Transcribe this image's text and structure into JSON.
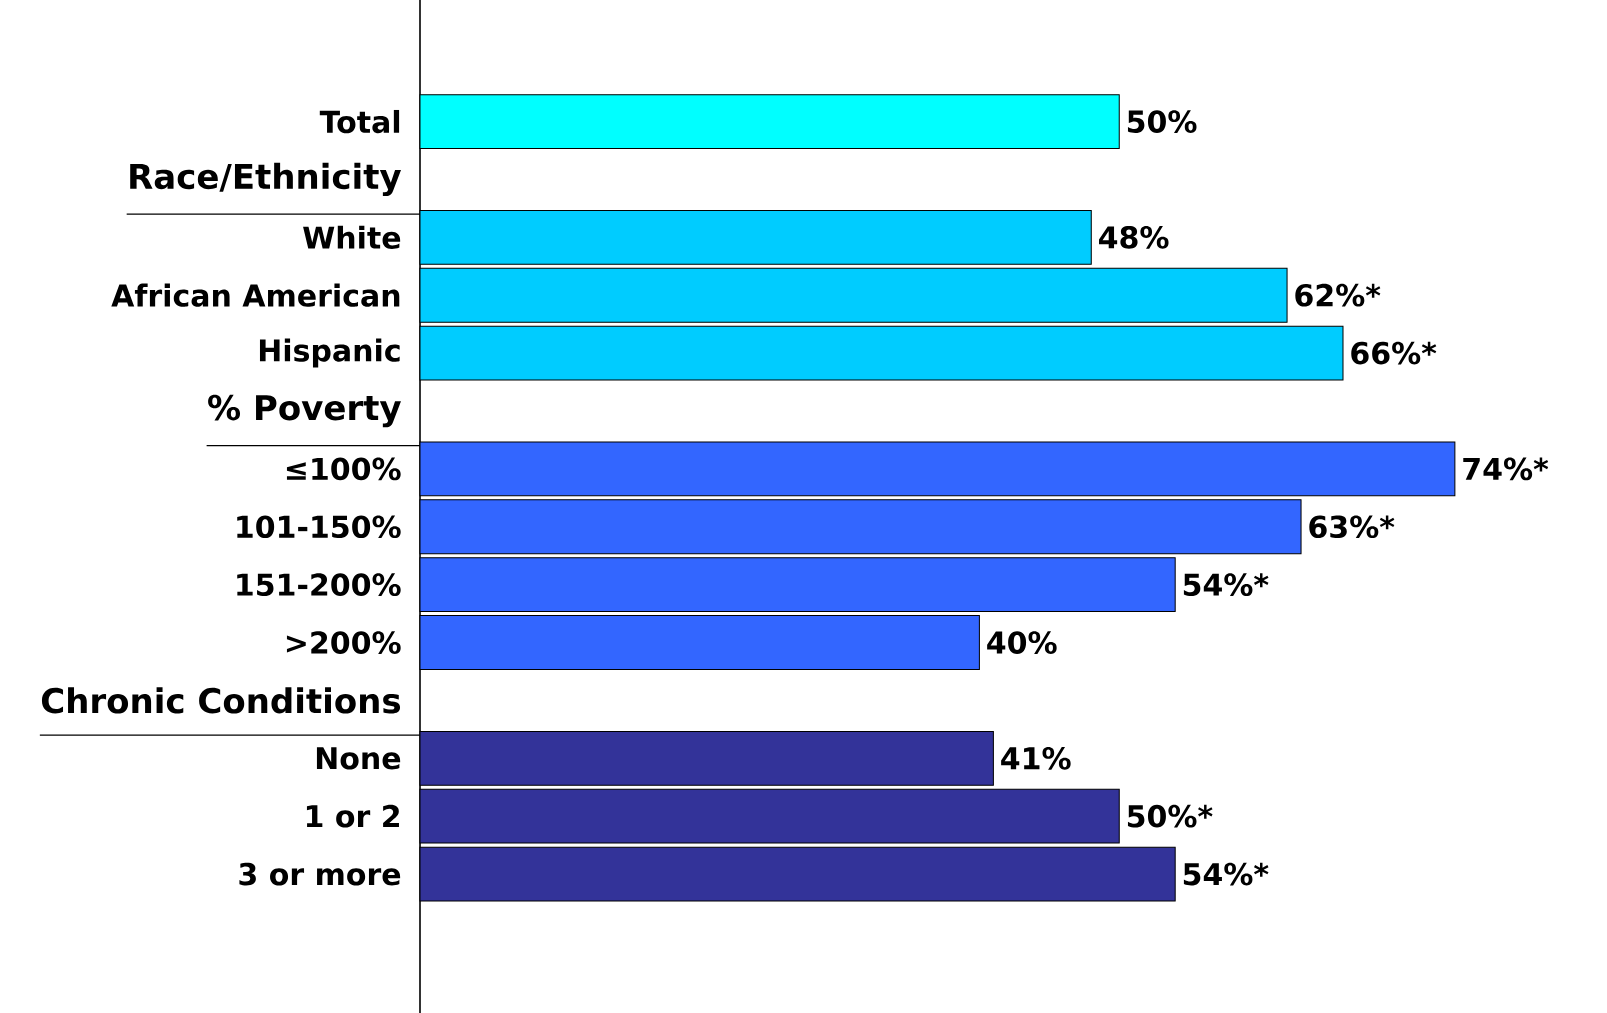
{
  "chart_data": {
    "type": "bar",
    "orientation": "horizontal",
    "categories": [
      "Total",
      "Race/Ethnicity",
      "White",
      "African American",
      "Hispanic",
      "% Poverty",
      "≤100%",
      "101-150%",
      "151-200%",
      ">200%",
      "Chronic Conditions",
      "None",
      "1 or 2",
      "3 or more"
    ],
    "values": [
      50,
      null,
      48,
      62,
      66,
      null,
      74,
      63,
      54,
      40,
      null,
      41,
      50,
      54
    ],
    "colors": [
      "#00ffff",
      null,
      "#00ccff",
      "#00ccff",
      "#00ccff",
      null,
      "#3366ff",
      "#3366ff",
      "#3366ff",
      "#3366ff",
      null,
      "#333399",
      "#333399",
      "#333399"
    ],
    "value_labels": [
      "50%",
      null,
      "48%",
      "62%*",
      "66%*",
      null,
      "74%*",
      "63%*",
      "54%*",
      "40%",
      null,
      "41%",
      "50%*",
      "54%*"
    ]
  }
}
